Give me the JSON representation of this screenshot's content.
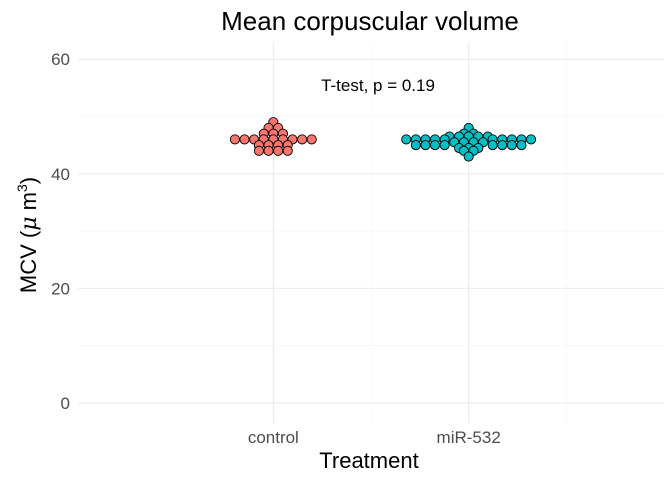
{
  "chart_data": {
    "type": "scatter",
    "subtype": "dotplot",
    "title": "Mean corpuscular volume",
    "xlabel": "Treatment",
    "ylabel_prefix": "MCV (",
    "ylabel_mu": "μ",
    "ylabel_unit": " m",
    "ylabel_exp": "3",
    "ylabel_suffix": ")",
    "ylim": [
      -3.5,
      63
    ],
    "yticks": [
      0,
      20,
      40,
      60
    ],
    "categories": [
      "control",
      "miR-532"
    ],
    "grid": true,
    "legend": "none",
    "annotation": "T-test, p = 0.19",
    "series": [
      {
        "category": "control",
        "color": "#F8766D",
        "points": [
          {
            "y": 49.0,
            "offset": 0
          },
          {
            "y": 48.0,
            "offset": -1
          },
          {
            "y": 48.0,
            "offset": 1
          },
          {
            "y": 47.0,
            "offset": -2
          },
          {
            "y": 47.0,
            "offset": 0
          },
          {
            "y": 47.0,
            "offset": 2
          },
          {
            "y": 46.0,
            "offset": -8
          },
          {
            "y": 46.0,
            "offset": -6
          },
          {
            "y": 46.0,
            "offset": -4
          },
          {
            "y": 46.0,
            "offset": -2
          },
          {
            "y": 46.0,
            "offset": 0
          },
          {
            "y": 46.0,
            "offset": 2
          },
          {
            "y": 46.0,
            "offset": 4
          },
          {
            "y": 46.0,
            "offset": 6
          },
          {
            "y": 46.0,
            "offset": 8
          },
          {
            "y": 45.0,
            "offset": -3
          },
          {
            "y": 45.0,
            "offset": -1
          },
          {
            "y": 45.0,
            "offset": 1
          },
          {
            "y": 45.0,
            "offset": 3
          },
          {
            "y": 44.0,
            "offset": -3
          },
          {
            "y": 44.0,
            "offset": -1
          },
          {
            "y": 44.0,
            "offset": 1
          },
          {
            "y": 44.0,
            "offset": 3
          }
        ]
      },
      {
        "category": "miR-532",
        "color": "#00BFC4",
        "points": [
          {
            "y": 48.0,
            "offset": 0
          },
          {
            "y": 47.0,
            "offset": -1
          },
          {
            "y": 47.0,
            "offset": 1
          },
          {
            "y": 46.5,
            "offset": -4
          },
          {
            "y": 46.5,
            "offset": -2
          },
          {
            "y": 46.5,
            "offset": 0
          },
          {
            "y": 46.5,
            "offset": 2
          },
          {
            "y": 46.5,
            "offset": 4
          },
          {
            "y": 46.0,
            "offset": -13
          },
          {
            "y": 46.0,
            "offset": -11
          },
          {
            "y": 46.0,
            "offset": -9
          },
          {
            "y": 46.0,
            "offset": -7
          },
          {
            "y": 46.0,
            "offset": -5
          },
          {
            "y": 46.0,
            "offset": 5
          },
          {
            "y": 46.0,
            "offset": 7
          },
          {
            "y": 46.0,
            "offset": 9
          },
          {
            "y": 46.0,
            "offset": 11
          },
          {
            "y": 46.0,
            "offset": 13
          },
          {
            "y": 45.5,
            "offset": -3
          },
          {
            "y": 45.5,
            "offset": -1
          },
          {
            "y": 45.5,
            "offset": 1
          },
          {
            "y": 45.5,
            "offset": 3
          },
          {
            "y": 45.0,
            "offset": -11
          },
          {
            "y": 45.0,
            "offset": -9
          },
          {
            "y": 45.0,
            "offset": -7
          },
          {
            "y": 45.0,
            "offset": -5
          },
          {
            "y": 45.0,
            "offset": 5
          },
          {
            "y": 45.0,
            "offset": 7
          },
          {
            "y": 45.0,
            "offset": 9
          },
          {
            "y": 45.0,
            "offset": 11
          },
          {
            "y": 44.5,
            "offset": -2
          },
          {
            "y": 44.5,
            "offset": 0
          },
          {
            "y": 44.5,
            "offset": 2
          },
          {
            "y": 44.0,
            "offset": -1
          },
          {
            "y": 44.0,
            "offset": 1
          },
          {
            "y": 43.0,
            "offset": 0
          }
        ]
      }
    ]
  }
}
